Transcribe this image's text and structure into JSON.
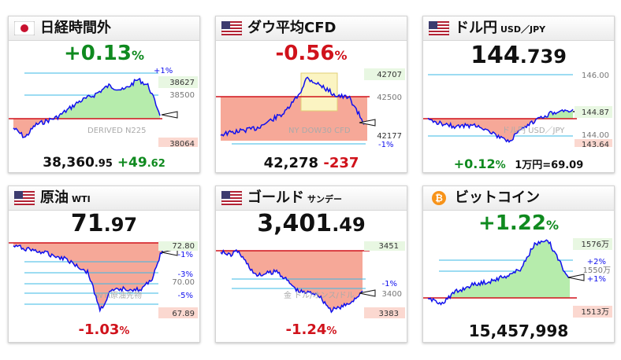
{
  "colors": {
    "up": "#0f8a1f",
    "down": "#d0121b",
    "line": "#1010ee",
    "fill_up": "#b6ecac",
    "fill_down": "#f6a898",
    "baseline": "#d0121b",
    "guide": "#3ab8e6"
  },
  "cards": [
    {
      "title": "日経時間外",
      "subtitle": "",
      "icon": "japan-flag-icon",
      "change_int": "+0.13",
      "change_unit": "%",
      "footer": {
        "price_int": "38,360",
        "price_dec": ".95",
        "chg_int": "+49",
        "chg_dec": ".62"
      },
      "watermark": "DERIVED N225",
      "labels": {
        "top_small": "+1%",
        "hi": "38627",
        "mid": "38500",
        "lo": "38064",
        "bottom_small": ""
      }
    },
    {
      "title": "ダウ平均CFD",
      "subtitle": "",
      "icon": "us-flag-icon",
      "change_int": "-0.56",
      "change_unit": "%",
      "footer": {
        "price": "42,278",
        "chg": "-237"
      },
      "watermark": "NY DOW30 CFD",
      "labels": {
        "hi": "42707",
        "mid": "42500",
        "lo": "42177",
        "bottom_small": "-1%"
      }
    },
    {
      "title": "ドル円",
      "subtitle": "USD／JPY",
      "icon": "us-flag-icon",
      "price_int": "144",
      "price_dec": ".739",
      "footer": {
        "pct_int": "+0.12",
        "pct_unit": "%",
        "note": "1万円=69.09"
      },
      "watermark": "ドル円 USD／JPY",
      "labels": {
        "hi": "146.00",
        "mid": "144.87",
        "lo2": "144.00",
        "lo": "143.64"
      }
    },
    {
      "title": "原油",
      "subtitle": "WTI",
      "icon": "us-flag-icon",
      "price_int": "71",
      "price_dec": ".97",
      "footer": {
        "pct_int": "-1.03",
        "pct_unit": "%"
      },
      "watermark": "WTI原油先物",
      "labels": {
        "hi": "72.80",
        "p1": "-1%",
        "p3": "-3%",
        "mid": "70.00",
        "p5": "-5%",
        "lo": "67.89"
      }
    },
    {
      "title": "ゴールド",
      "subtitle": "サンデー",
      "icon": "us-flag-icon",
      "price_int": "3,401",
      "price_dec": ".49",
      "footer": {
        "pct_int": "-1.24",
        "pct_unit": "%"
      },
      "watermark": "金 ドル/オンス/ドル",
      "labels": {
        "hi": "3451",
        "p1": "-1%",
        "mid": "3400",
        "lo": "3383"
      }
    },
    {
      "title": "ビットコイン",
      "subtitle": "",
      "icon": "bitcoin-icon",
      "change_int": "+1.22",
      "change_unit": "%",
      "footer": {
        "price": "15,457,998"
      },
      "watermark": "ビットコイン",
      "labels": {
        "hi": "1576万",
        "p2": "+2%",
        "mid": "1550万",
        "p1": "+1%",
        "lo": "1513万"
      }
    }
  ]
}
